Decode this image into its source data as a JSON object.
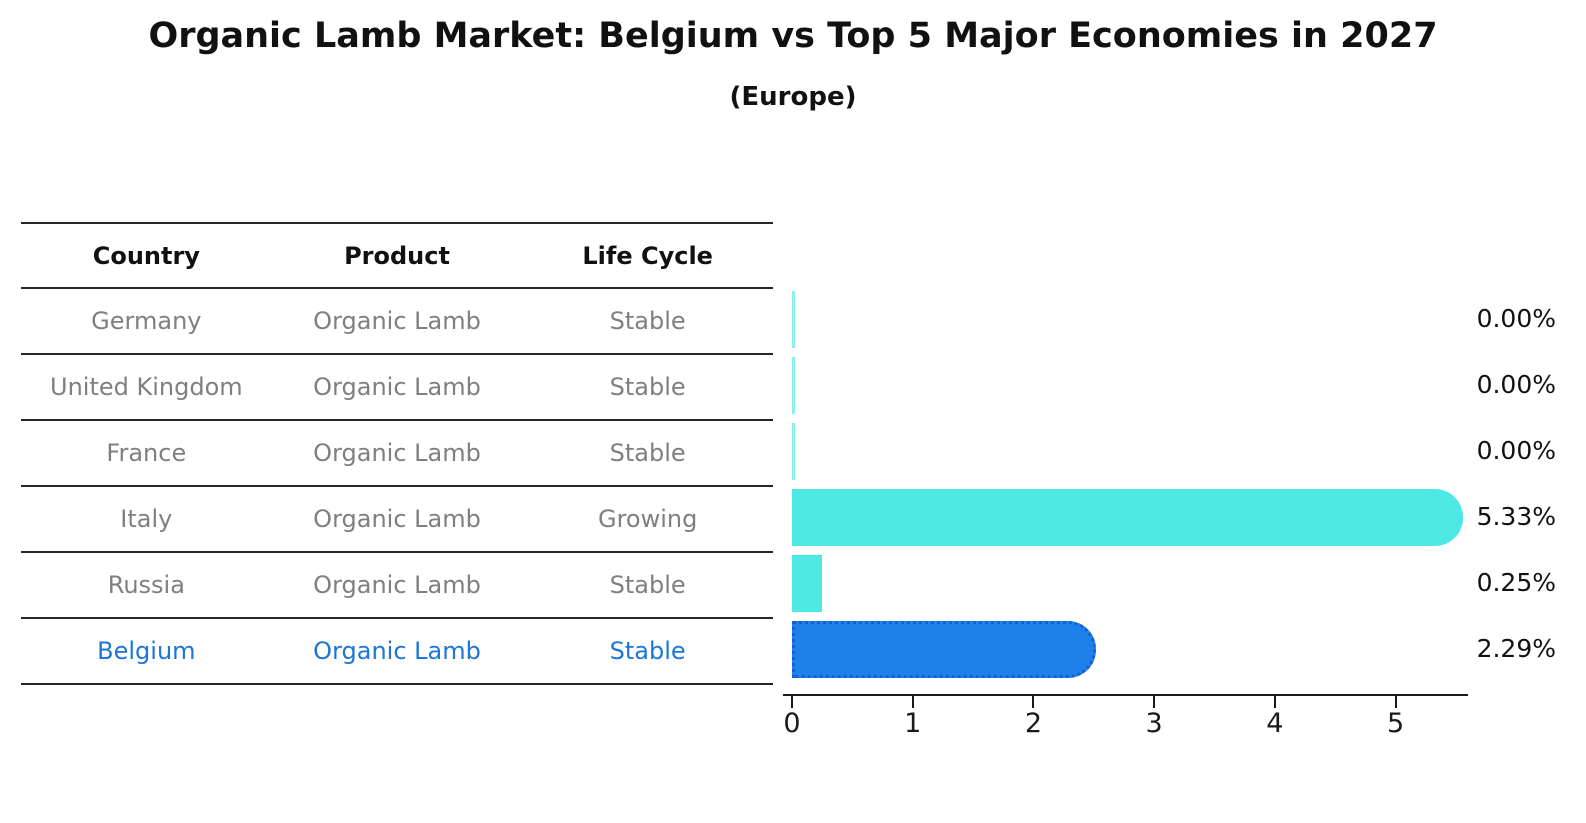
{
  "title": "Organic Lamb Market: Belgium vs Top 5 Major Economies in 2027",
  "subtitle": "(Europe)",
  "table": {
    "headers": [
      "Country",
      "Product",
      "Life Cycle"
    ],
    "rows": [
      {
        "country": "Germany",
        "product": "Organic Lamb",
        "life_cycle": "Stable",
        "highlight": false
      },
      {
        "country": "United Kingdom",
        "product": "Organic Lamb",
        "life_cycle": "Stable",
        "highlight": false
      },
      {
        "country": "France",
        "product": "Organic Lamb",
        "life_cycle": "Stable",
        "highlight": false
      },
      {
        "country": "Italy",
        "product": "Organic Lamb",
        "life_cycle": "Growing",
        "highlight": false
      },
      {
        "country": "Russia",
        "product": "Organic Lamb",
        "life_cycle": "Stable",
        "highlight": false
      },
      {
        "country": "Belgium",
        "product": "Organic Lamb",
        "life_cycle": "Stable",
        "highlight": true
      }
    ]
  },
  "chart_data": {
    "type": "bar",
    "orientation": "horizontal",
    "title": "Organic Lamb Market: Belgium vs Top 5 Major Economies in 2027",
    "subtitle": "(Europe)",
    "categories": [
      "Germany",
      "United Kingdom",
      "France",
      "Italy",
      "Russia",
      "Belgium"
    ],
    "values": [
      0.0,
      0.0,
      0.0,
      5.33,
      0.25,
      2.29
    ],
    "value_labels": [
      "0.00%",
      "0.00%",
      "0.00%",
      "5.33%",
      "0.25%",
      "2.29%"
    ],
    "unit": "%",
    "highlight_index": 5,
    "x_ticks": [
      "0",
      "1",
      "2",
      "3",
      "4",
      "5"
    ],
    "xlim": [
      0,
      5.6
    ],
    "grid": false,
    "legend": "none",
    "colors": {
      "bar_default": "#4de8e4",
      "bar_highlight": "#1e80ea",
      "highlight_text": "#1b76d9",
      "muted_text": "#7f7f7f",
      "axis": "#1a1a1a"
    }
  }
}
